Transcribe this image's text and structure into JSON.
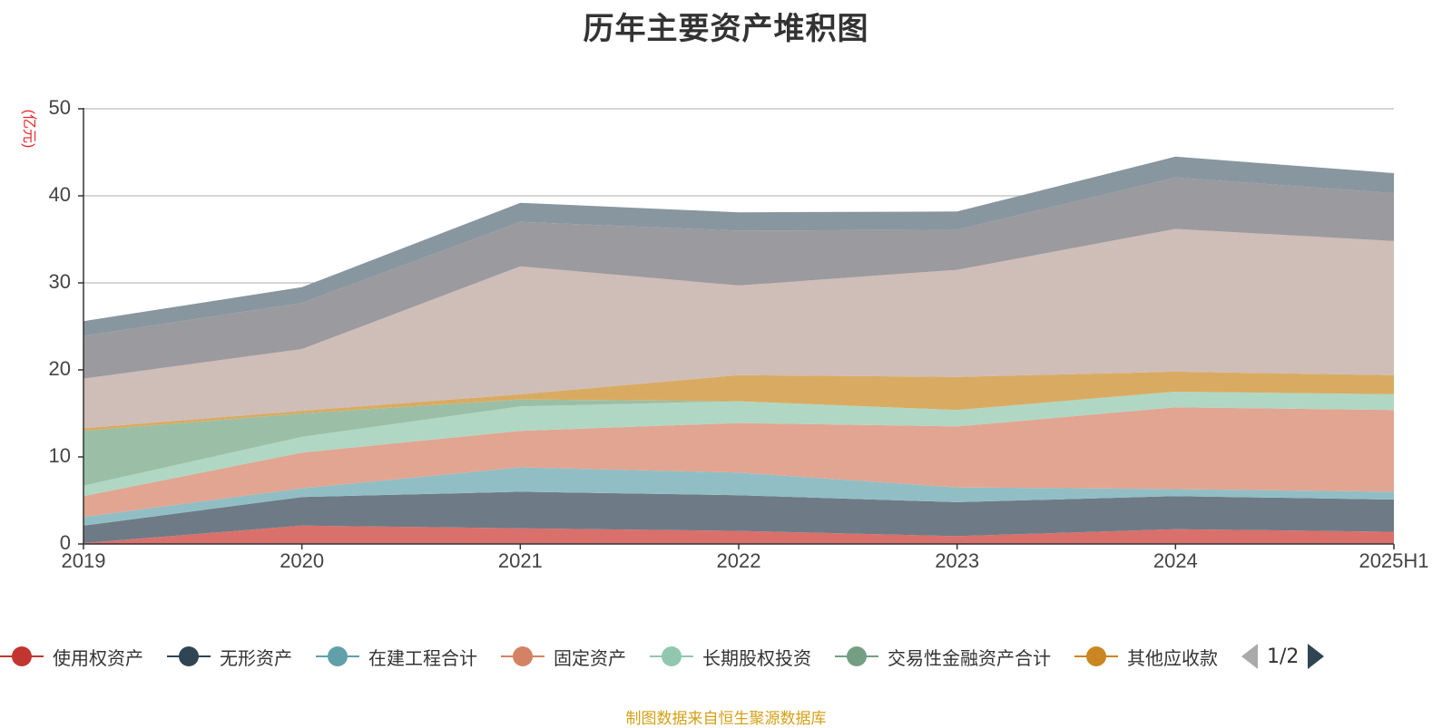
{
  "chart_data": {
    "type": "area",
    "title": "历年主要资产堆积图",
    "ylabel": "(亿元)",
    "ylim": [
      0,
      50
    ],
    "yticks": [
      0,
      10,
      20,
      30,
      40,
      50
    ],
    "x": [
      "2019",
      "2020",
      "2021",
      "2022",
      "2023",
      "2024",
      "2025H1"
    ],
    "stacked": true,
    "grid": true,
    "legend_position": "bottom",
    "series": [
      {
        "name": "使用权资产",
        "color": "#d9706c",
        "values": [
          0.1,
          2.1,
          1.8,
          1.5,
          0.9,
          1.7,
          1.4
        ]
      },
      {
        "name": "无形资产",
        "color": "#6e7b86",
        "values": [
          2.0,
          3.3,
          4.2,
          4.1,
          3.9,
          3.8,
          3.7
        ]
      },
      {
        "name": "在建工程合计",
        "color": "#91bec4",
        "values": [
          1.0,
          1.0,
          2.8,
          2.6,
          1.7,
          0.8,
          0.9
        ]
      },
      {
        "name": "固定资产",
        "color": "#e1a592",
        "values": [
          2.4,
          4.1,
          4.2,
          5.7,
          7.0,
          9.4,
          9.4
        ]
      },
      {
        "name": "长期股权投资",
        "color": "#b0d7c3",
        "values": [
          1.2,
          1.8,
          2.8,
          2.5,
          1.9,
          1.8,
          1.8
        ]
      },
      {
        "name": "交易性金融资产合计",
        "color": "#9bbfa6",
        "values": [
          6.3,
          2.7,
          0.8,
          0.0,
          0.0,
          0.0,
          0.0
        ]
      },
      {
        "name": "其他应收款",
        "color": "#d9ab62",
        "values": [
          0.3,
          0.3,
          0.6,
          3.0,
          3.8,
          2.3,
          2.2
        ]
      },
      {
        "color": "#cfbdb7",
        "values": [
          5.7,
          7.1,
          14.7,
          10.3,
          12.3,
          16.4,
          15.4
        ]
      },
      {
        "color": "#9a9a9f",
        "values": [
          4.9,
          5.3,
          5.1,
          6.3,
          4.6,
          5.9,
          5.5
        ]
      },
      {
        "color": "#88969f",
        "values": [
          1.7,
          1.8,
          2.2,
          2.1,
          2.1,
          2.4,
          2.3
        ]
      }
    ]
  },
  "legend": {
    "pager_text": "1/2",
    "colors": [
      "#c23531",
      "#2f4554",
      "#61a0a8",
      "#d48265",
      "#91c7ae",
      "#749f83",
      "#ca8622"
    ]
  },
  "footer": {
    "source_text": "制图数据来自恒生聚源数据库"
  }
}
